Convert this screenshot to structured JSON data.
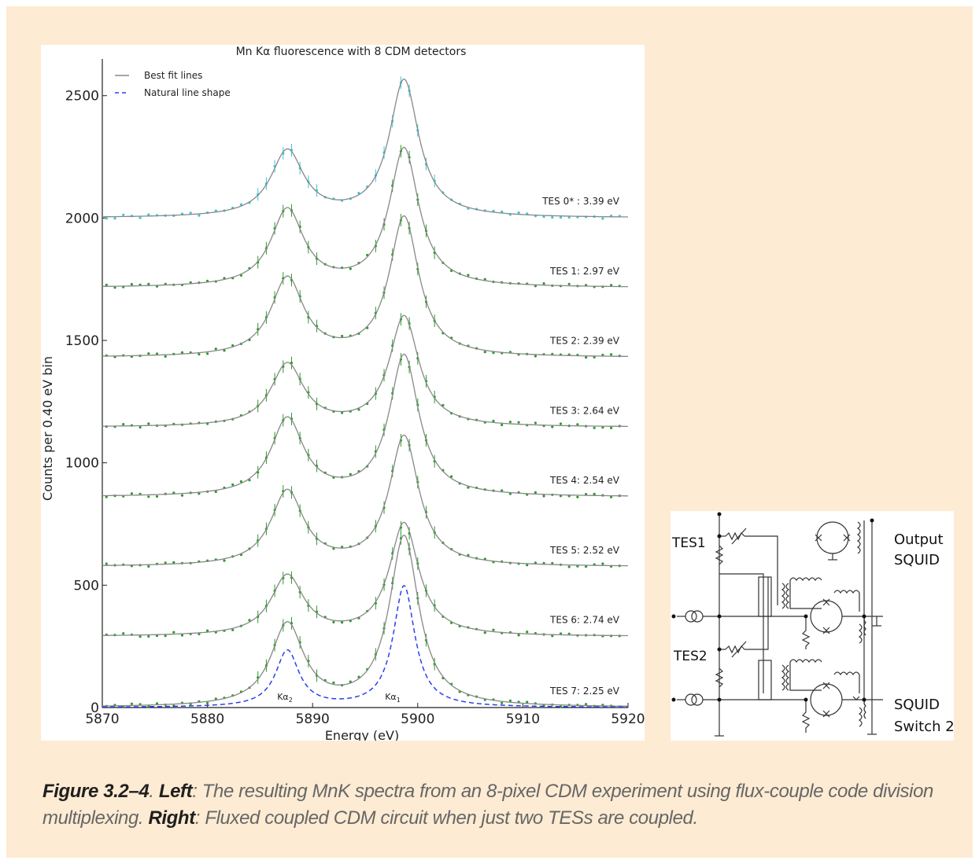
{
  "figure": {
    "caption": {
      "label": "Figure 3.2–4",
      "sep1": ". ",
      "left_label": "Left",
      "left_text": ": The resulting MnK spectra from an 8-pixel CDM experiment using flux-couple code division multiplexing. ",
      "right_label": "Right",
      "right_text": ": Fluxed coupled CDM circuit when just two TESs are coupled."
    }
  },
  "chart_data": {
    "type": "line",
    "title": "Mn Kα fluorescence with 8 CDM detectors",
    "xlabel": "Energy (eV)",
    "ylabel": "Counts per 0.40 eV bin",
    "xlim": [
      5870,
      5920
    ],
    "ylim": [
      0,
      2650
    ],
    "x_ticks": [
      5870,
      5880,
      5890,
      5900,
      5910,
      5920
    ],
    "y_ticks": [
      0,
      500,
      1000,
      1500,
      2000,
      2500
    ],
    "legend": {
      "position": "top-left",
      "entries": [
        "Best fit lines",
        "Natural line shape"
      ]
    },
    "annotations": {
      "ka2": "Kα",
      "ka2_sub": "2",
      "ka1": "Kα",
      "ka1_sub": "1"
    },
    "colors": {
      "fit": "#888888",
      "natural": "#2a3ff0",
      "tes0": "#3cc6d8",
      "tes": "#2d9a2d"
    },
    "peak_positions": {
      "ka2": 5887.6,
      "ka1": 5898.7,
      "valley": 5891.8
    },
    "series": [
      {
        "name": "TES 0* : 3.39 eV",
        "baseline": 2000,
        "ka2_height": 270,
        "ka1_height": 560,
        "valley_height": 100
      },
      {
        "name": "TES 1: 2.97 eV",
        "baseline": 1715,
        "ka2_height": 315,
        "ka1_height": 565,
        "valley_height": 105
      },
      {
        "name": "TES 2: 2.39 eV",
        "baseline": 1430,
        "ka2_height": 320,
        "ka1_height": 570,
        "valley_height": 100
      },
      {
        "name": "TES 3: 2.64 eV",
        "baseline": 1145,
        "ka2_height": 255,
        "ka1_height": 450,
        "valley_height": 80
      },
      {
        "name": "TES 4: 2.54 eV",
        "baseline": 860,
        "ka2_height": 315,
        "ka1_height": 575,
        "valley_height": 105
      },
      {
        "name": "TES 5: 2.52 eV",
        "baseline": 575,
        "ka2_height": 305,
        "ka1_height": 530,
        "valley_height": 100
      },
      {
        "name": "TES 6: 2.74 eV",
        "baseline": 290,
        "ka2_height": 245,
        "ka1_height": 460,
        "valley_height": 80
      },
      {
        "name": "TES 7: 2.25 eV",
        "baseline": 0,
        "ka2_height": 335,
        "ka1_height": 695,
        "valley_height": 90
      },
      {
        "name": "Natural line shape",
        "baseline": 0,
        "ka2_height": 230,
        "ka1_height": 495,
        "valley_height": 30
      }
    ]
  },
  "circuit": {
    "labels": {
      "tes1": "TES1",
      "tes2": "TES2",
      "output_line1": "Output",
      "output_line2": "SQUID",
      "switch_line1": "SQUID",
      "switch_line2": "Switch 2"
    }
  }
}
